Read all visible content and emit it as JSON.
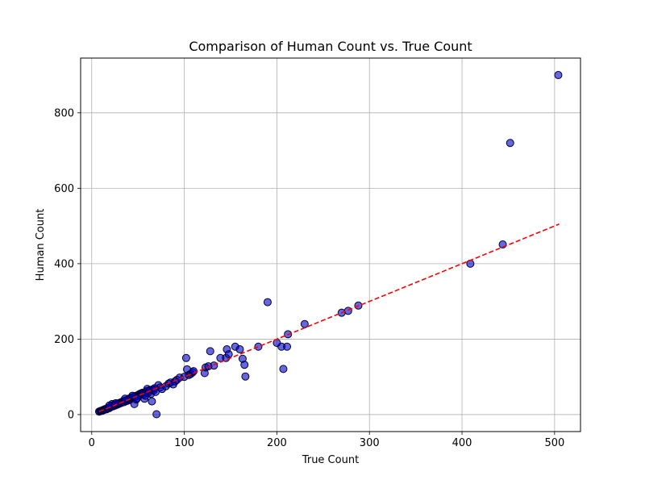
{
  "chart_data": {
    "type": "scatter",
    "title": "Comparison of Human Count vs. True Count",
    "xlabel": "True Count",
    "ylabel": "Human Count",
    "xlim": [
      -12,
      528
    ],
    "ylim": [
      -45,
      945
    ],
    "xticks": [
      0,
      100,
      200,
      300,
      400,
      500
    ],
    "yticks": [
      0,
      200,
      400,
      600,
      800
    ],
    "grid": true,
    "legend": "none",
    "point_color": "#0000cc",
    "point_edge_color": "#000033",
    "reference_line": {
      "style": "dashed",
      "color": "#ff0000",
      "x": [
        8,
        505
      ],
      "y": [
        8,
        505
      ]
    },
    "series": [
      {
        "points": [
          [
            8,
            8
          ],
          [
            9,
            9
          ],
          [
            10,
            10
          ],
          [
            11,
            10
          ],
          [
            12,
            12
          ],
          [
            13,
            12
          ],
          [
            14,
            14
          ],
          [
            15,
            15
          ],
          [
            16,
            14
          ],
          [
            17,
            17
          ],
          [
            18,
            18
          ],
          [
            19,
            17
          ],
          [
            20,
            20
          ],
          [
            21,
            21
          ],
          [
            22,
            28
          ],
          [
            23,
            22
          ],
          [
            24,
            26
          ],
          [
            25,
            24
          ],
          [
            26,
            25
          ],
          [
            27,
            28
          ],
          [
            28,
            27
          ],
          [
            29,
            30
          ],
          [
            30,
            29
          ],
          [
            31,
            32
          ],
          [
            32,
            31
          ],
          [
            33,
            34
          ],
          [
            34,
            35
          ],
          [
            35,
            33
          ],
          [
            36,
            37
          ],
          [
            37,
            38
          ],
          [
            38,
            36
          ],
          [
            39,
            40
          ],
          [
            40,
            42
          ],
          [
            41,
            39
          ],
          [
            42,
            44
          ],
          [
            43,
            45
          ],
          [
            44,
            46
          ],
          [
            45,
            47
          ],
          [
            46,
            28
          ],
          [
            47,
            49
          ],
          [
            48,
            48
          ],
          [
            50,
            52
          ],
          [
            51,
            50
          ],
          [
            52,
            55
          ],
          [
            53,
            53
          ],
          [
            54,
            57
          ],
          [
            55,
            58
          ],
          [
            56,
            54
          ],
          [
            57,
            42
          ],
          [
            58,
            60
          ],
          [
            59,
            62
          ],
          [
            60,
            68
          ],
          [
            61,
            58
          ],
          [
            62,
            63
          ],
          [
            63,
            65
          ],
          [
            64,
            55
          ],
          [
            65,
            35
          ],
          [
            66,
            67
          ],
          [
            67,
            64
          ],
          [
            68,
            70
          ],
          [
            69,
            60
          ],
          [
            70,
            1
          ],
          [
            72,
            78
          ],
          [
            74,
            72
          ],
          [
            76,
            68
          ],
          [
            80,
            75
          ],
          [
            83,
            82
          ],
          [
            85,
            85
          ],
          [
            88,
            80
          ],
          [
            90,
            88
          ],
          [
            92,
            92
          ],
          [
            95,
            98
          ],
          [
            100,
            100
          ],
          [
            102,
            150
          ],
          [
            103,
            120
          ],
          [
            105,
            105
          ],
          [
            107,
            108
          ],
          [
            109,
            112
          ],
          [
            110,
            115
          ],
          [
            122,
            110
          ],
          [
            123,
            125
          ],
          [
            126,
            128
          ],
          [
            128,
            168
          ],
          [
            132,
            130
          ],
          [
            139,
            150
          ],
          [
            145,
            150
          ],
          [
            146,
            173
          ],
          [
            148,
            160
          ],
          [
            155,
            180
          ],
          [
            160,
            173
          ],
          [
            163,
            148
          ],
          [
            165,
            132
          ],
          [
            166,
            101
          ],
          [
            180,
            180
          ],
          [
            190,
            298
          ],
          [
            200,
            190
          ],
          [
            205,
            180
          ],
          [
            207,
            121
          ],
          [
            211,
            180
          ],
          [
            212,
            213
          ],
          [
            230,
            240
          ],
          [
            270,
            270
          ],
          [
            277,
            275
          ],
          [
            288,
            289
          ],
          [
            409,
            400
          ],
          [
            444,
            451
          ],
          [
            452,
            720
          ],
          [
            504,
            900
          ],
          [
            44,
            50
          ],
          [
            48,
            40
          ],
          [
            36,
            42
          ],
          [
            26,
            30
          ],
          [
            19,
            24
          ],
          [
            58,
            50
          ],
          [
            49,
            43
          ]
        ]
      }
    ]
  }
}
